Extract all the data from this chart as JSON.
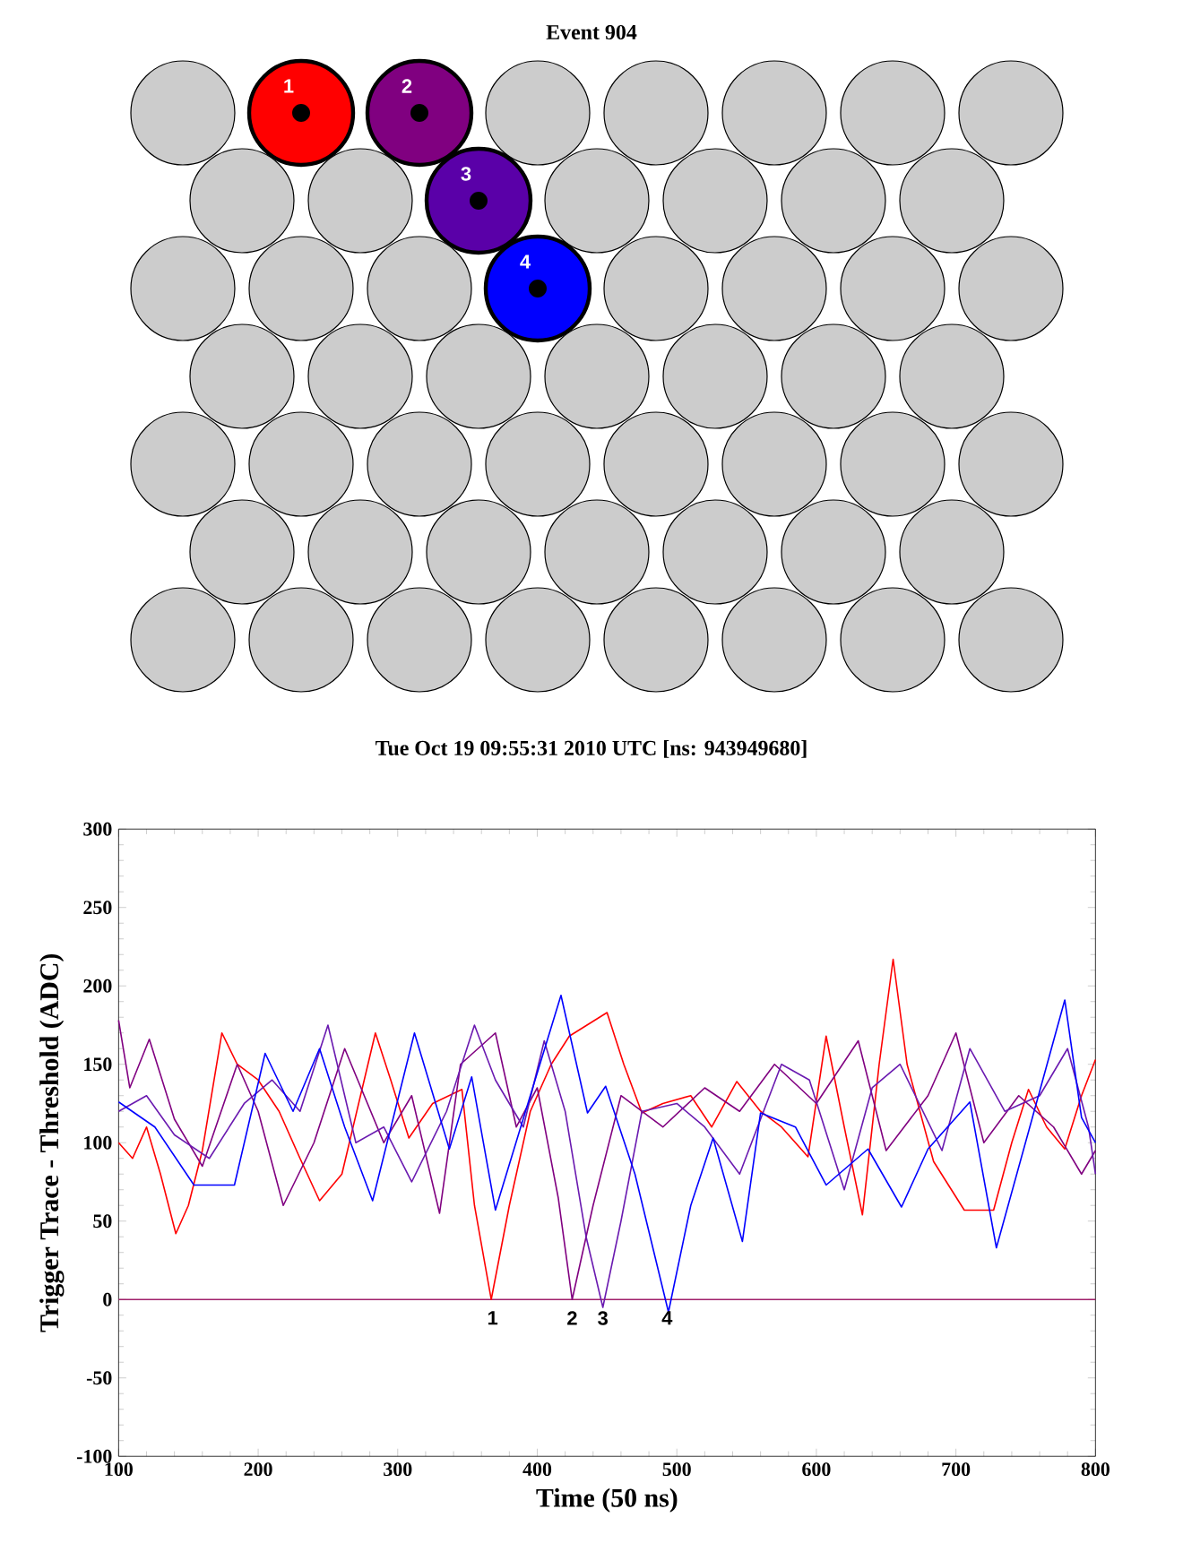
{
  "chart_data": [
    {
      "type": "other",
      "title": "Event 904",
      "categories": [
        "1",
        "2",
        "3",
        "4"
      ],
      "colors": [
        "#ff0000",
        "#800080",
        "#5a00a8",
        "#0000ff"
      ],
      "annotations": [
        "Tue Oct 19 09:55:31 2010 UTC [ns: 943949680]"
      ]
    },
    {
      "type": "line",
      "xlabel": "Time (50 ns)",
      "ylabel": "Trigger Trace - Threshold (ADC)",
      "marker": "none",
      "xlim": [
        100,
        800
      ],
      "ylim": [
        -100,
        300
      ],
      "xticks": [
        100,
        200,
        300,
        400,
        500,
        600,
        700,
        800
      ],
      "yticks": [
        -100,
        -50,
        0,
        50,
        100,
        150,
        200,
        250,
        300
      ],
      "series": [
        {
          "color": "#ff0000",
          "x": [
            100,
            110,
            120,
            130,
            141,
            150,
            160,
            174,
            185,
            200,
            215,
            230,
            244,
            260,
            284,
            295,
            308,
            325,
            346,
            355,
            367,
            380,
            395,
            410,
            423,
            450,
            462,
            475,
            490,
            510,
            525,
            543,
            560,
            575,
            594,
            607,
            620,
            633,
            645,
            655,
            665,
            684,
            706,
            727,
            740,
            752,
            765,
            778,
            790,
            800
          ],
          "values": [
            100,
            90,
            110,
            80,
            42,
            60,
            95,
            170,
            150,
            140,
            120,
            90,
            63,
            80,
            170,
            140,
            103,
            125,
            134,
            60,
            0,
            60,
            120,
            150,
            168,
            183,
            150,
            119,
            125,
            130,
            110,
            139,
            120,
            110,
            91,
            168,
            110,
            54,
            150,
            217,
            150,
            88,
            57,
            57,
            100,
            134,
            110,
            96,
            130,
            153
          ]
        },
        {
          "color": "#800080",
          "x": [
            100,
            108,
            122,
            140,
            160,
            185,
            200,
            218,
            240,
            262,
            290,
            310,
            330,
            345,
            370,
            385,
            400,
            415,
            425,
            440,
            460,
            490,
            520,
            545,
            570,
            600,
            630,
            650,
            680,
            700,
            720,
            745,
            770,
            790,
            800
          ],
          "values": [
            178,
            135,
            166,
            115,
            85,
            150,
            120,
            60,
            100,
            160,
            100,
            130,
            55,
            150,
            170,
            110,
            135,
            65,
            0,
            60,
            130,
            110,
            135,
            120,
            150,
            125,
            165,
            95,
            130,
            170,
            100,
            130,
            110,
            80,
            95
          ]
        },
        {
          "color": "#6a1ab0",
          "x": [
            100,
            120,
            140,
            165,
            190,
            210,
            230,
            250,
            270,
            290,
            310,
            335,
            355,
            370,
            390,
            405,
            420,
            435,
            447,
            460,
            475,
            500,
            520,
            545,
            575,
            595,
            620,
            640,
            660,
            690,
            710,
            735,
            760,
            780,
            795,
            800
          ],
          "values": [
            120,
            130,
            105,
            90,
            125,
            140,
            120,
            175,
            100,
            110,
            75,
            120,
            175,
            140,
            110,
            165,
            120,
            40,
            -5,
            50,
            120,
            125,
            110,
            80,
            150,
            140,
            70,
            135,
            150,
            95,
            160,
            120,
            130,
            160,
            110,
            80
          ]
        },
        {
          "color": "#0000ff",
          "x": [
            100,
            126,
            154,
            183,
            205,
            225,
            244,
            262,
            282,
            312,
            337,
            353,
            370,
            395,
            417,
            436,
            449,
            470,
            494,
            510,
            526,
            547,
            560,
            585,
            607,
            637,
            661,
            680,
            710,
            729,
            752,
            778,
            790,
            800
          ],
          "values": [
            126,
            110,
            73,
            73,
            157,
            120,
            160,
            110,
            63,
            170,
            96,
            142,
            57,
            130,
            194,
            119,
            136,
            80,
            -8,
            60,
            103,
            37,
            119,
            110,
            73,
            96,
            59,
            96,
            126,
            33,
            107,
            191,
            116,
            100
          ]
        }
      ],
      "ref_lines": [
        {
          "axis": "y",
          "value": 0,
          "color": "#a0206a"
        }
      ],
      "annotations": [
        {
          "text": "1",
          "x": 368,
          "y": 0
        },
        {
          "text": "2",
          "x": 425,
          "y": 0
        },
        {
          "text": "3",
          "x": 447,
          "y": 0
        },
        {
          "text": "4",
          "x": 493,
          "y": 0
        }
      ]
    }
  ]
}
